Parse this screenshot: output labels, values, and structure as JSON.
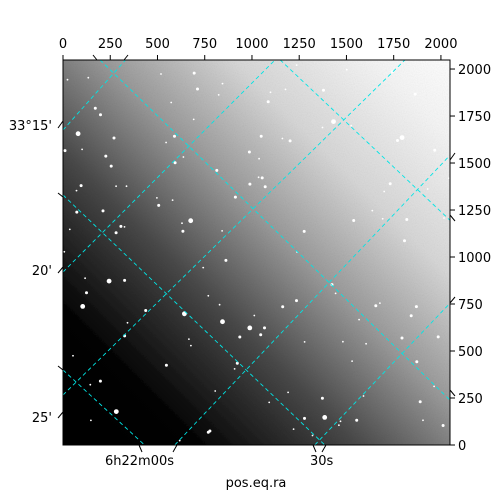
{
  "chart_data": {
    "type": "heatmap",
    "title": "",
    "xlabel": "pos.eq.ra",
    "ylabel": "",
    "pixel_axes": {
      "x_ticks": [
        0,
        250,
        500,
        750,
        1000,
        1250,
        1500,
        1750,
        2000
      ],
      "y_ticks": [
        0,
        250,
        500,
        750,
        1000,
        1250,
        1500,
        1750,
        2000
      ],
      "xlim": [
        0,
        2048
      ],
      "ylim": [
        0,
        2048
      ]
    },
    "world_axes": {
      "ra_tick_labels": [
        "6h22m00s",
        "30s"
      ],
      "dec_tick_labels": [
        "33°15'",
        "20'",
        "25'"
      ]
    },
    "grid": true,
    "grid_color": "#00e5e5",
    "colormap": "gray",
    "description": "Astronomical image: bright background gradient toward upper right, dark toward lower left, with scattered point sources (stars); cyan dashed world-coordinate grid overlay."
  }
}
